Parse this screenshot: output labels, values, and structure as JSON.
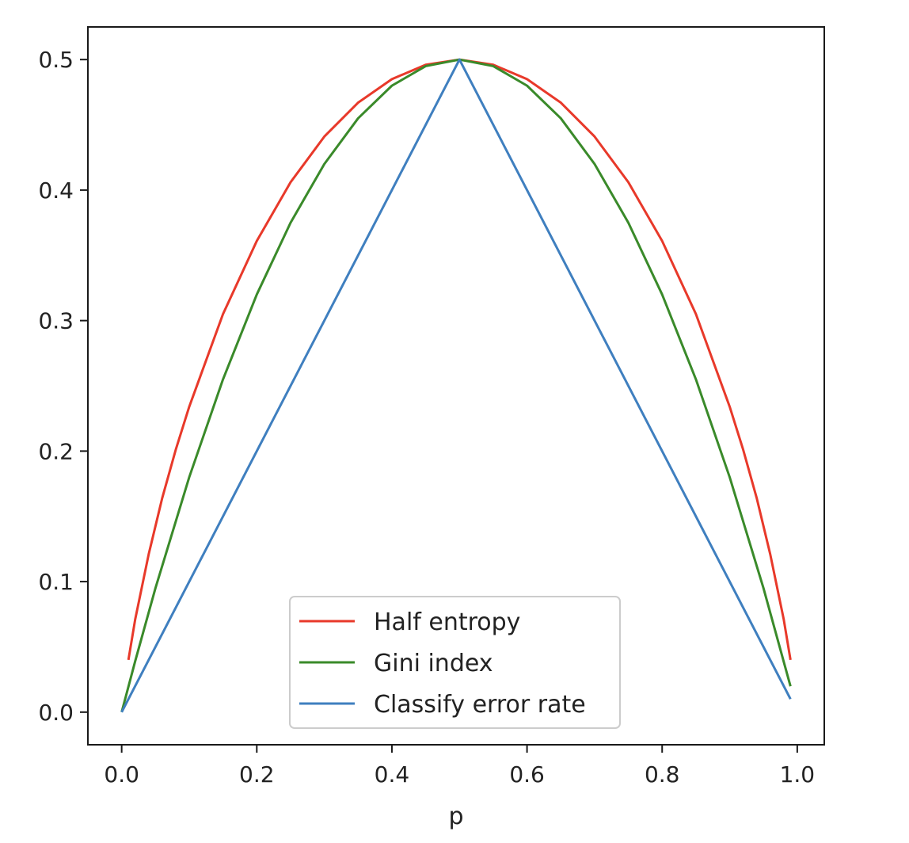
{
  "chart_data": {
    "type": "line",
    "title": "",
    "xlabel": "p",
    "ylabel": "",
    "xlim": [
      -0.05,
      1.04
    ],
    "ylim": [
      -0.025,
      0.525
    ],
    "grid": false,
    "legend_position": "lower center",
    "xticks": [
      0.0,
      0.2,
      0.4,
      0.6,
      0.8,
      1.0
    ],
    "xtick_labels": [
      "0.0",
      "0.2",
      "0.4",
      "0.6",
      "0.8",
      "1.0"
    ],
    "yticks": [
      0.0,
      0.1,
      0.2,
      0.3,
      0.4,
      0.5
    ],
    "ytick_labels": [
      "0.0",
      "0.1",
      "0.2",
      "0.3",
      "0.4",
      "0.5"
    ],
    "series": [
      {
        "name": "Half entropy",
        "color": "#e8392a",
        "x": [
          0.01,
          0.02,
          0.04,
          0.06,
          0.08,
          0.1,
          0.15,
          0.2,
          0.25,
          0.3,
          0.35,
          0.4,
          0.45,
          0.5,
          0.55,
          0.6,
          0.65,
          0.7,
          0.75,
          0.8,
          0.85,
          0.9,
          0.92,
          0.94,
          0.96,
          0.98,
          0.99
        ],
        "y": [
          0.04,
          0.071,
          0.121,
          0.164,
          0.201,
          0.234,
          0.305,
          0.361,
          0.406,
          0.441,
          0.467,
          0.485,
          0.496,
          0.5,
          0.496,
          0.485,
          0.467,
          0.441,
          0.406,
          0.361,
          0.305,
          0.234,
          0.201,
          0.164,
          0.121,
          0.071,
          0.04
        ]
      },
      {
        "name": "Gini index",
        "color": "#3a8a2a",
        "x": [
          0.0,
          0.02,
          0.05,
          0.1,
          0.15,
          0.2,
          0.25,
          0.3,
          0.35,
          0.4,
          0.45,
          0.5,
          0.55,
          0.6,
          0.65,
          0.7,
          0.75,
          0.8,
          0.85,
          0.9,
          0.95,
          0.99
        ],
        "y": [
          0.0,
          0.039,
          0.095,
          0.18,
          0.255,
          0.32,
          0.375,
          0.42,
          0.455,
          0.48,
          0.495,
          0.5,
          0.495,
          0.48,
          0.455,
          0.42,
          0.375,
          0.32,
          0.255,
          0.18,
          0.095,
          0.0198
        ]
      },
      {
        "name": "Classify error rate",
        "color": "#3f7fbf",
        "x": [
          0.0,
          0.5,
          0.99
        ],
        "y": [
          0.0,
          0.5,
          0.01
        ]
      }
    ]
  }
}
